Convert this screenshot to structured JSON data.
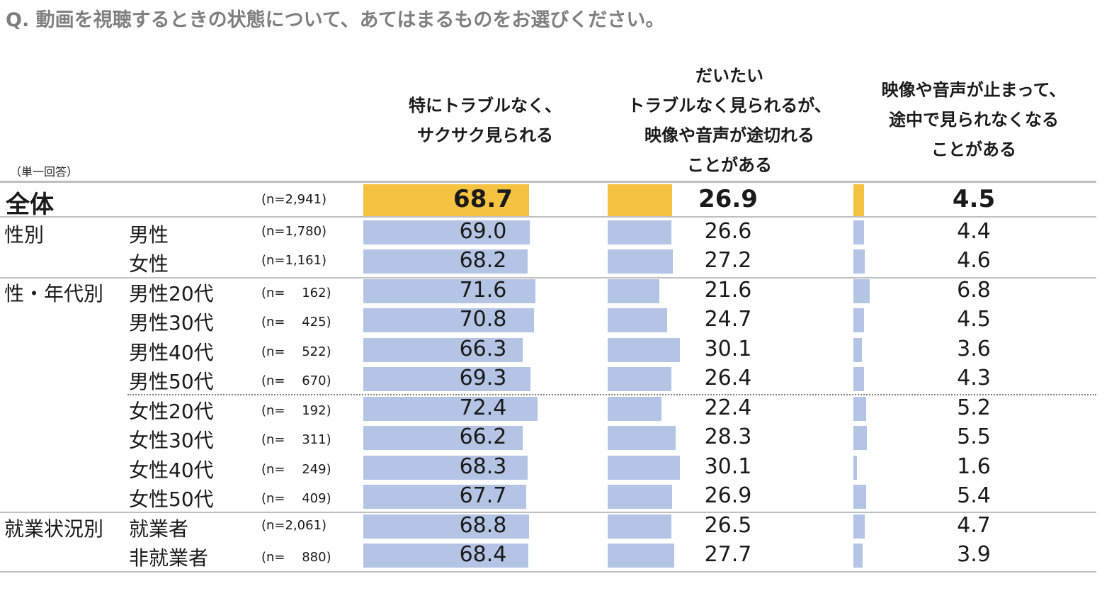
{
  "question": "Q.  動画を視聴するときの状態について、あてはまるものをお選びください。",
  "note": "（単一回答）",
  "colors": {
    "total_bar": "#f5c242",
    "row_bar": "#b4c4e4"
  },
  "chart_data": {
    "type": "bar",
    "orientation": "horizontal",
    "columns": [
      "特にトラブルなく、\nサクサク見られる",
      "だいたい\nトラブルなく見られるが、\n映像や音声が途切れる\nことがある",
      "映像や音声が止まって、\n途中で見られなくなる\nことがある"
    ],
    "rows": [
      {
        "group": "全体",
        "label": "",
        "n": "(n=2,941)",
        "values": [
          "68.7",
          "26.9",
          "4.5"
        ],
        "total": true
      },
      {
        "group": "性別",
        "label": "男性",
        "n": "(n=1,780)",
        "values": [
          "69.0",
          "26.6",
          "4.4"
        ]
      },
      {
        "group": "",
        "label": "女性",
        "n": "(n=1,161)",
        "values": [
          "68.2",
          "27.2",
          "4.6"
        ]
      },
      {
        "group": "性・年代別",
        "label": "男性20代",
        "n": "(n=　 162)",
        "values": [
          "71.6",
          "21.6",
          "6.8"
        ]
      },
      {
        "group": "",
        "label": "男性30代",
        "n": "(n=　 425)",
        "values": [
          "70.8",
          "24.7",
          "4.5"
        ]
      },
      {
        "group": "",
        "label": "男性40代",
        "n": "(n=　 522)",
        "values": [
          "66.3",
          "30.1",
          "3.6"
        ]
      },
      {
        "group": "",
        "label": "男性50代",
        "n": "(n=　 670)",
        "values": [
          "69.3",
          "26.4",
          "4.3"
        ]
      },
      {
        "group": "",
        "label": "女性20代",
        "n": "(n=　 192)",
        "values": [
          "72.4",
          "22.4",
          "5.2"
        ]
      },
      {
        "group": "",
        "label": "女性30代",
        "n": "(n=　 311)",
        "values": [
          "66.2",
          "28.3",
          "5.5"
        ]
      },
      {
        "group": "",
        "label": "女性40代",
        "n": "(n=　 249)",
        "values": [
          "68.3",
          "30.1",
          "1.6"
        ]
      },
      {
        "group": "",
        "label": "女性50代",
        "n": "(n=　 409)",
        "values": [
          "67.7",
          "26.9",
          "5.4"
        ]
      },
      {
        "group": "就業状況別",
        "label": "就業者",
        "n": "(n=2,061)",
        "values": [
          "68.8",
          "26.5",
          "4.7"
        ]
      },
      {
        "group": "",
        "label": "非就業者",
        "n": "(n=　 880)",
        "values": [
          "68.4",
          "27.7",
          "3.9"
        ]
      }
    ]
  }
}
